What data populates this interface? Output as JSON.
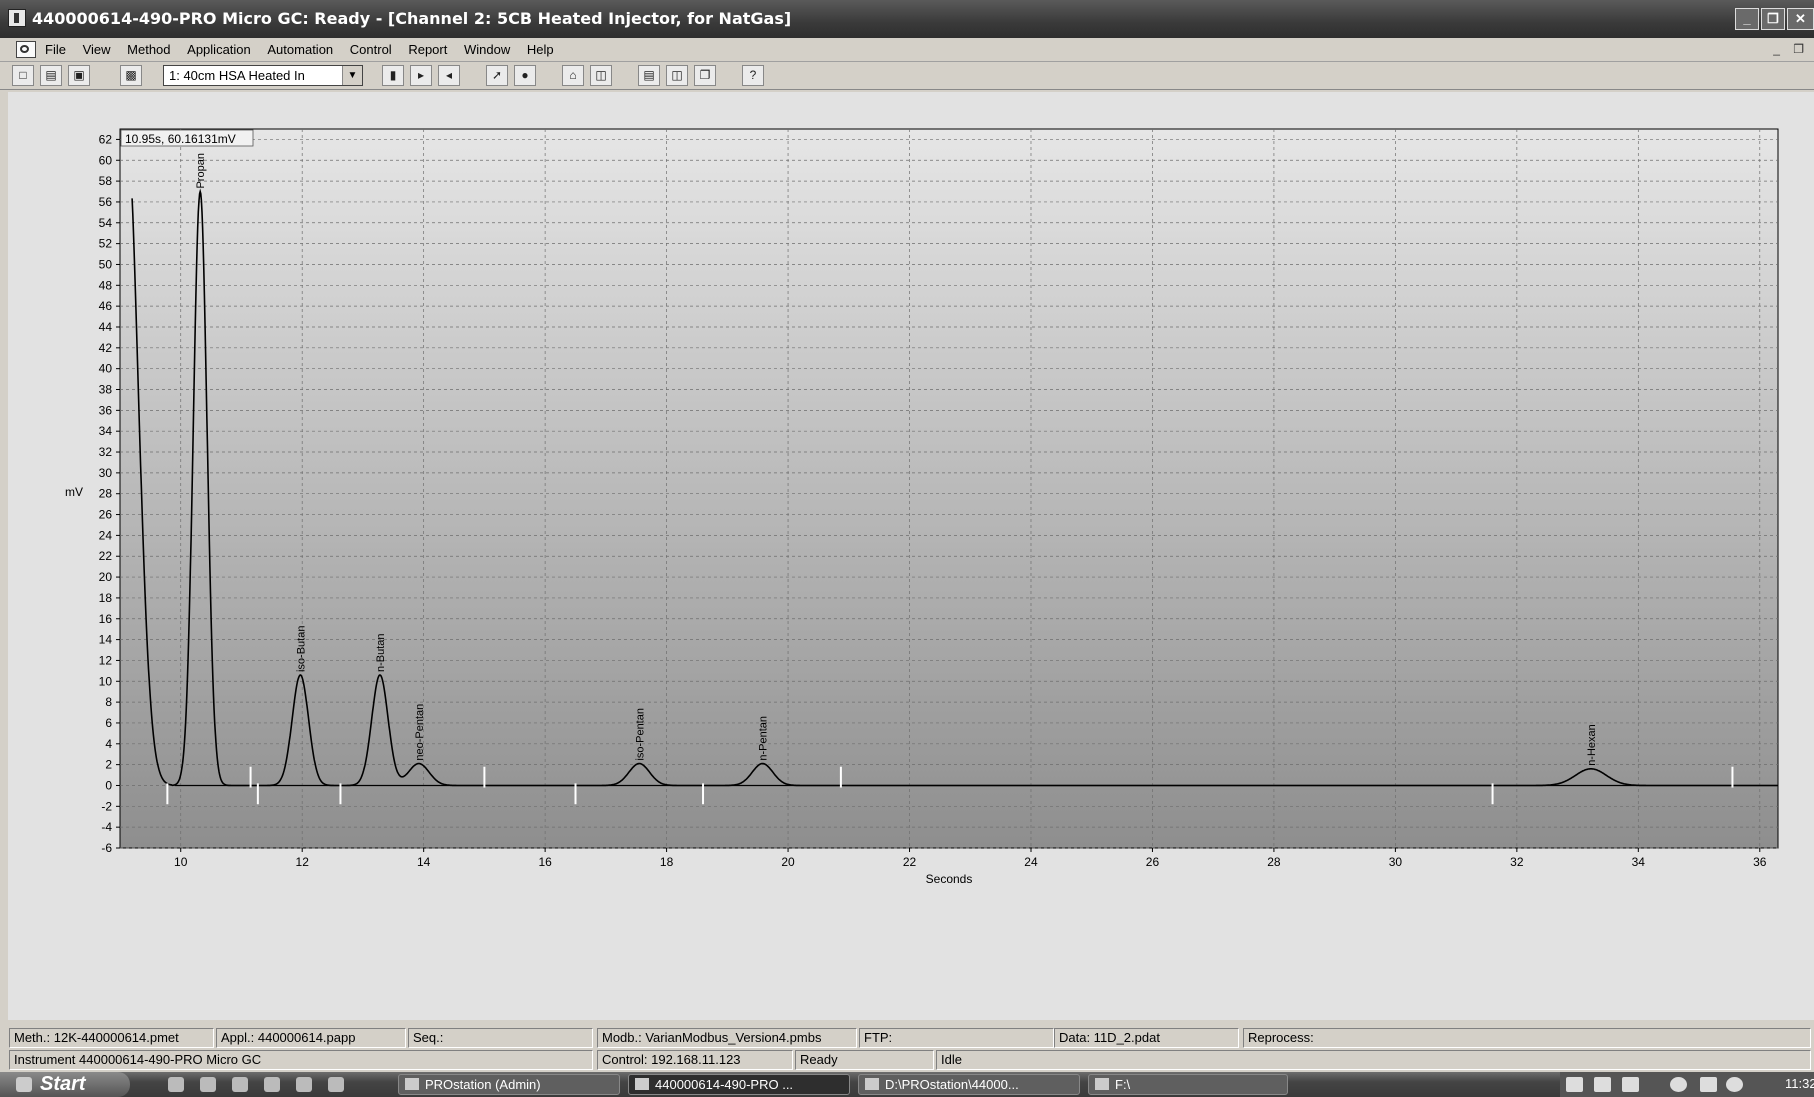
{
  "window": {
    "title": "440000614-490-PRO Micro GC: Ready - [Channel 2: 5CB Heated Injector, for NatGas]",
    "controls": [
      "_",
      "❐",
      "✕"
    ]
  },
  "menu": {
    "items": [
      "File",
      "View",
      "Method",
      "Application",
      "Automation",
      "Control",
      "Report",
      "Window",
      "Help"
    ],
    "mdi_controls": [
      "_",
      "❐"
    ]
  },
  "toolbar": {
    "channel_select": "1: 40cm HSA Heated In"
  },
  "chart_data": {
    "type": "line",
    "cursor_readout": "10.95s, 60.16131mV",
    "xlabel": "Seconds",
    "ylabel": "mV",
    "xlim": [
      9,
      36.3
    ],
    "ylim": [
      -6,
      63
    ],
    "x_ticks": [
      10,
      12,
      14,
      16,
      18,
      20,
      22,
      24,
      26,
      28,
      30,
      32,
      34,
      36
    ],
    "y_ticks": [
      62,
      60,
      58,
      56,
      54,
      52,
      50,
      48,
      46,
      44,
      42,
      40,
      38,
      36,
      34,
      32,
      30,
      28,
      26,
      24,
      22,
      20,
      18,
      16,
      14,
      12,
      10,
      8,
      6,
      4,
      2,
      0,
      -2,
      -4,
      -6
    ],
    "grid": true,
    "peaks": [
      {
        "name": "Propan",
        "rt": 10.32,
        "height": 57.0
      },
      {
        "name": "iso-Butan",
        "rt": 11.97,
        "height": 10.6
      },
      {
        "name": "n-Butan",
        "rt": 13.28,
        "height": 10.6
      },
      {
        "name": "neo-Pentan",
        "rt": 13.92,
        "height": 2.1
      },
      {
        "name": "iso-Pentan",
        "rt": 17.55,
        "height": 2.1
      },
      {
        "name": "n-Pentan",
        "rt": 19.58,
        "height": 2.1
      },
      {
        "name": "n-Hexan",
        "rt": 33.22,
        "height": 1.6
      }
    ],
    "markers_up": [
      9.78,
      11.27,
      12.63,
      16.5,
      18.6,
      31.6
    ],
    "markers_down": [
      11.15,
      15.0,
      20.87,
      35.55
    ]
  },
  "status": {
    "row1": {
      "method": "Meth.: 12K-440000614.pmet",
      "application": "Appl.: 440000614.papp",
      "sequence": "Seq.:",
      "modbus": "Modb.: VarianModbus_Version4.pmbs",
      "ftp": "FTP:",
      "data": "Data: 11D_2.pdat",
      "reprocess": "Reprocess:"
    },
    "row2": {
      "instrument": "Instrument 440000614-490-PRO Micro GC",
      "control": "Control: 192.168.11.123",
      "state": "Ready",
      "run": "Idle"
    }
  },
  "taskbar": {
    "start": "Start",
    "tasks": [
      "PROstation (Admin)",
      "440000614-490-PRO ...",
      "D:\\PROstation\\44000...",
      "F:\\"
    ],
    "clock": "11:32"
  }
}
